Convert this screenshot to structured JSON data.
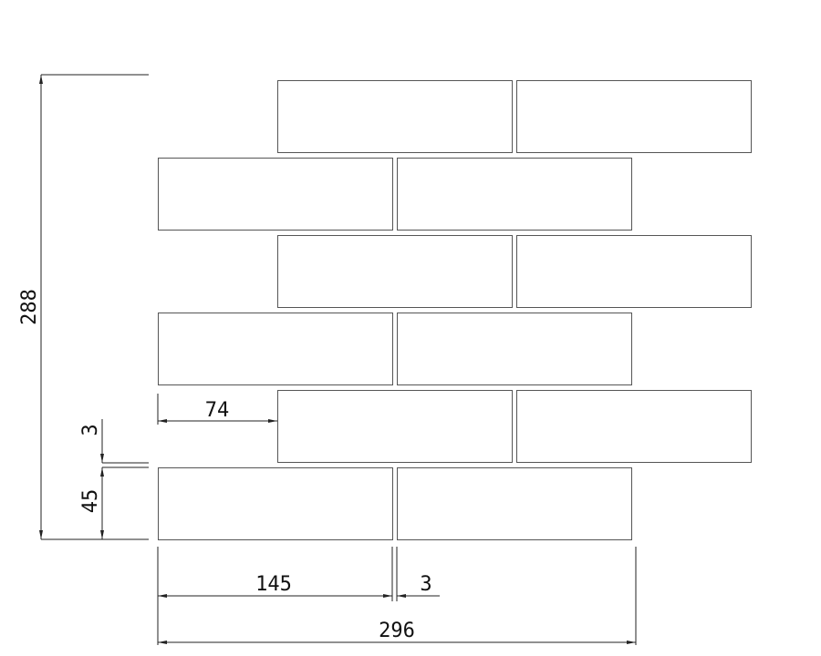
{
  "diagram": {
    "type": "brick tile layout drawing",
    "rows": 6,
    "bricks_per_row": 2,
    "dimensions": {
      "total_height": "288",
      "joint_vertical": "3",
      "brick_height": "45",
      "offset": "74",
      "brick_width": "145",
      "joint_horizontal": "3",
      "total_width": "296"
    },
    "line_color": "#555555",
    "background": "#ffffff"
  }
}
